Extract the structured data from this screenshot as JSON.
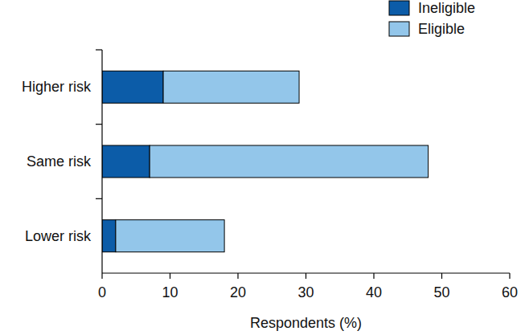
{
  "chart_data": {
    "type": "bar",
    "orientation": "horizontal",
    "stacked": true,
    "categories": [
      "Higher risk",
      "Same risk",
      "Lower risk"
    ],
    "series": [
      {
        "name": "Ineligible",
        "color": "#0c5ca8",
        "values": [
          9,
          7,
          2
        ]
      },
      {
        "name": "Eligible",
        "color": "#93c6ea",
        "values": [
          20,
          41,
          16
        ]
      }
    ],
    "xlabel": "Respondents (%)",
    "xlim": [
      0,
      60
    ],
    "xticks": [
      0,
      10,
      20,
      30,
      40,
      50,
      60
    ],
    "legend": "upper right"
  }
}
